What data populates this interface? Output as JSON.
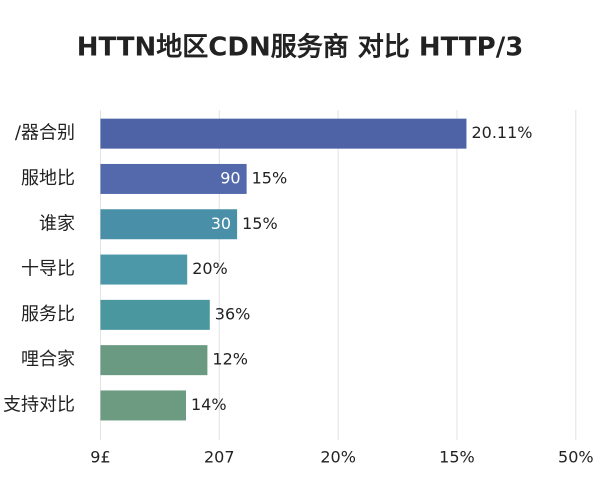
{
  "chart_data": {
    "type": "hbar",
    "title": "HTTN地区CDN服务商 对比 HTTP/3",
    "categories": [
      "/器合别",
      "服地比",
      "谁家",
      "十导比",
      "服务比",
      "哩合家",
      "支持对比"
    ],
    "values": [
      30.8,
      12.3,
      11.5,
      7.3,
      9.2,
      9.0,
      7.2
    ],
    "inner_labels": [
      null,
      "90",
      "30",
      null,
      null,
      null,
      null
    ],
    "outer_labels": [
      "20.11%",
      "15%",
      "15%",
      "20%",
      "36%",
      "12%",
      "14%"
    ],
    "colors": [
      "#4e63a6",
      "#5369ac",
      "#4a8fa8",
      "#4c97a8",
      "#4a979f",
      "#6a9a82",
      "#6c9b82"
    ],
    "xlim": [
      -1.3,
      41.7
    ],
    "xticks": [
      {
        "value": 0,
        "label": "9£"
      },
      {
        "value": 10,
        "label": "207"
      },
      {
        "value": 20,
        "label": "20%"
      },
      {
        "value": 30,
        "label": "15%"
      },
      {
        "value": 40,
        "label": "50%"
      }
    ],
    "grid": true
  }
}
